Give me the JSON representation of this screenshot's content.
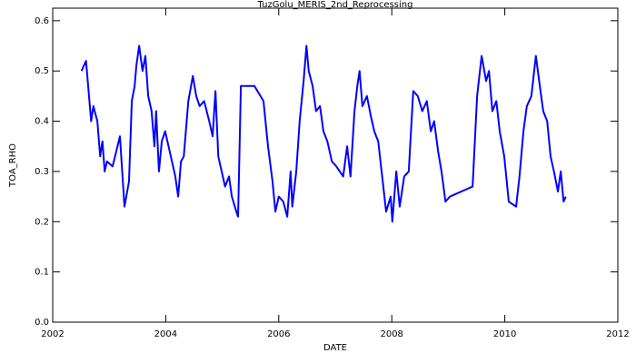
{
  "chart_data": {
    "type": "line",
    "title": "TuzGolu_MERIS_2nd_Reprocessing",
    "xlabel": "DATE",
    "ylabel": "TOA_RHO",
    "x": [
      2002.51,
      2002.59,
      2002.68,
      2002.72,
      2002.79,
      2002.84,
      2002.88,
      2002.92,
      2002.96,
      2003.06,
      2003.19,
      2003.27,
      2003.35,
      2003.4,
      2003.45,
      2003.48,
      2003.53,
      2003.59,
      2003.64,
      2003.69,
      2003.75,
      2003.8,
      2003.83,
      2003.88,
      2003.93,
      2003.99,
      2004.09,
      2004.17,
      2004.22,
      2004.27,
      2004.32,
      2004.4,
      2004.48,
      2004.54,
      2004.6,
      2004.68,
      2004.77,
      2004.83,
      2004.88,
      2004.93,
      2004.99,
      2005.05,
      2005.12,
      2005.17,
      2005.25,
      2005.28,
      2005.33,
      2005.41,
      2005.57,
      2005.73,
      2005.81,
      2005.89,
      2005.94,
      2006.0,
      2006.08,
      2006.15,
      2006.21,
      2006.24,
      2006.31,
      2006.37,
      2006.44,
      2006.49,
      2006.53,
      2006.6,
      2006.66,
      2006.73,
      2006.79,
      2006.86,
      2006.94,
      2007.02,
      2007.14,
      2007.21,
      2007.27,
      2007.34,
      2007.39,
      2007.43,
      2007.48,
      2007.56,
      2007.63,
      2007.69,
      2007.76,
      2007.82,
      2007.9,
      2007.98,
      2008.01,
      2008.08,
      2008.14,
      2008.22,
      2008.3,
      2008.38,
      2008.46,
      2008.54,
      2008.62,
      2008.69,
      2008.75,
      2008.82,
      2008.88,
      2008.95,
      2009.03,
      2009.43,
      2009.51,
      2009.59,
      2009.67,
      2009.72,
      2009.78,
      2009.85,
      2009.91,
      2009.99,
      2010.07,
      2010.2,
      2010.26,
      2010.33,
      2010.39,
      2010.47,
      2010.55,
      2010.62,
      2010.68,
      2010.75,
      2010.81,
      2010.87,
      2010.94,
      2010.99,
      2011.04,
      2011.08
    ],
    "series": [
      {
        "name": "TOA_RHO",
        "color": "#0000ff",
        "values": [
          0.5,
          0.52,
          0.4,
          0.43,
          0.4,
          0.33,
          0.36,
          0.3,
          0.32,
          0.31,
          0.37,
          0.23,
          0.28,
          0.44,
          0.47,
          0.51,
          0.55,
          0.5,
          0.53,
          0.45,
          0.42,
          0.35,
          0.42,
          0.3,
          0.36,
          0.38,
          0.33,
          0.29,
          0.25,
          0.32,
          0.33,
          0.44,
          0.49,
          0.45,
          0.43,
          0.44,
          0.4,
          0.37,
          0.46,
          0.33,
          0.3,
          0.27,
          0.29,
          0.25,
          0.22,
          0.21,
          0.47,
          0.47,
          0.47,
          0.44,
          0.35,
          0.28,
          0.22,
          0.25,
          0.24,
          0.21,
          0.3,
          0.23,
          0.3,
          0.4,
          0.48,
          0.55,
          0.5,
          0.47,
          0.42,
          0.43,
          0.38,
          0.36,
          0.32,
          0.31,
          0.29,
          0.35,
          0.29,
          0.42,
          0.47,
          0.5,
          0.43,
          0.45,
          0.41,
          0.38,
          0.36,
          0.3,
          0.22,
          0.25,
          0.2,
          0.3,
          0.23,
          0.29,
          0.3,
          0.46,
          0.45,
          0.42,
          0.44,
          0.38,
          0.4,
          0.34,
          0.3,
          0.24,
          0.25,
          0.27,
          0.45,
          0.53,
          0.48,
          0.5,
          0.42,
          0.44,
          0.38,
          0.33,
          0.24,
          0.23,
          0.29,
          0.38,
          0.43,
          0.45,
          0.53,
          0.47,
          0.42,
          0.4,
          0.33,
          0.3,
          0.26,
          0.3,
          0.24,
          0.25
        ]
      }
    ],
    "xlim": [
      2002,
      2012
    ],
    "xticks": [
      2002,
      2004,
      2006,
      2008,
      2010,
      2012
    ],
    "ylim": [
      0,
      0.625
    ],
    "yticks": [
      {
        "value": 0,
        "label": "0.0"
      },
      0.1,
      0.2,
      0.3,
      0.4,
      0.5,
      0.6
    ],
    "grid": false
  }
}
